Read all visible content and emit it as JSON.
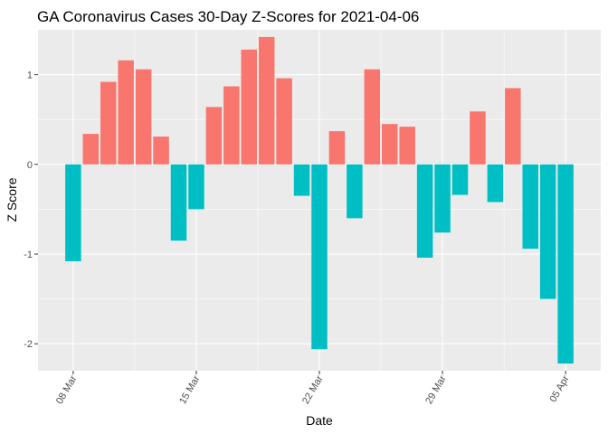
{
  "chart_data": {
    "type": "bar",
    "title": "GA Coronavirus Cases 30-Day Z-Scores for 2021-04-06",
    "xlabel": "Date",
    "ylabel": "Z Score",
    "ylim": [
      -2.3,
      1.5
    ],
    "grid": true,
    "legend": "none",
    "colors": {
      "positive": "#F8766D",
      "negative": "#00BFC4",
      "panel": "#EBEBEB"
    },
    "x_ticks": [
      {
        "date": "2021-03-08",
        "label": "08 Mar"
      },
      {
        "date": "2021-03-15",
        "label": "15 Mar"
      },
      {
        "date": "2021-03-22",
        "label": "22 Mar"
      },
      {
        "date": "2021-03-29",
        "label": "29 Mar"
      },
      {
        "date": "2021-04-05",
        "label": "05 Apr"
      }
    ],
    "y_ticks": [
      {
        "value": 1,
        "label": "1"
      },
      {
        "value": 0,
        "label": "0"
      },
      {
        "value": -1,
        "label": "-1"
      },
      {
        "value": -2,
        "label": "-2"
      }
    ],
    "x_start": "2021-03-08",
    "values": [
      -1.08,
      0.34,
      0.92,
      1.16,
      1.06,
      0.31,
      -0.85,
      -0.5,
      0.64,
      0.87,
      1.28,
      1.42,
      0.96,
      -0.35,
      -2.06,
      0.37,
      -0.6,
      1.06,
      0.45,
      0.42,
      -1.04,
      -0.76,
      -0.34,
      0.59,
      -0.42,
      0.85,
      -0.94,
      -1.5,
      -2.22
    ]
  }
}
